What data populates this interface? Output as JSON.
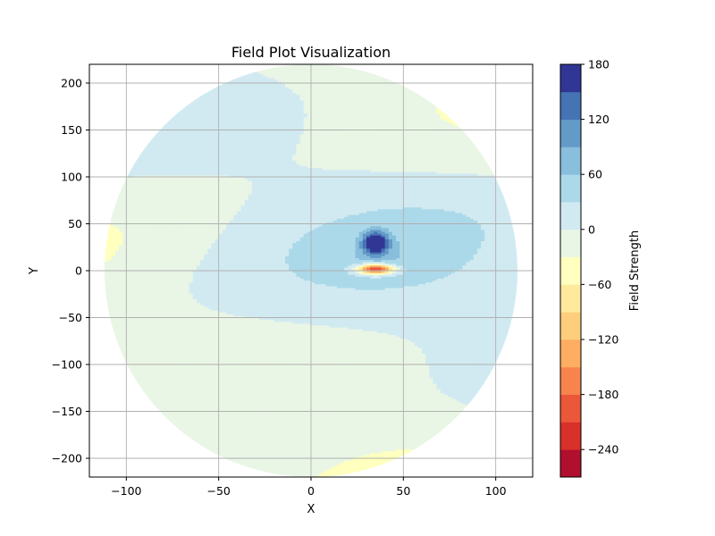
{
  "chart_data": {
    "type": "contour",
    "title": "Field Plot Visualization",
    "xlabel": "X",
    "ylabel": "Y",
    "xlim": [
      -120,
      120
    ],
    "ylim": [
      -220,
      220
    ],
    "xticks": [
      "−100",
      "−50",
      "0",
      "50",
      "100"
    ],
    "xtick_values": [
      -100,
      -50,
      0,
      50,
      100
    ],
    "yticks": [
      "−200",
      "−150",
      "−100",
      "−50",
      "0",
      "50",
      "100",
      "150",
      "200"
    ],
    "ytick_values": [
      -200,
      -150,
      -100,
      -50,
      0,
      50,
      100,
      150,
      200
    ],
    "grid": true,
    "domain_shape": "disc",
    "domain_radius": 220,
    "field_features": {
      "positive_peak": {
        "x": 35,
        "y": 30,
        "value": 180
      },
      "negative_peak": {
        "x": 35,
        "y": 2,
        "value": -270
      },
      "background_range": [
        -30,
        30
      ]
    },
    "colorbar": {
      "label": "Field Strength",
      "range": [
        -270,
        180
      ],
      "levels": [
        -270,
        -240,
        -210,
        -180,
        -150,
        -120,
        -90,
        -60,
        -30,
        0,
        30,
        60,
        90,
        120,
        150,
        180
      ],
      "tick_labels": [
        "180",
        "120",
        "60",
        "0",
        "−60",
        "−120",
        "−180",
        "−240"
      ],
      "tick_values": [
        180,
        120,
        60,
        0,
        -60,
        -120,
        -180,
        -240
      ],
      "colors": [
        "#b10f2e",
        "#d8302a",
        "#ea5739",
        "#f7834d",
        "#fdae61",
        "#fece7c",
        "#fee99d",
        "#ffffbf",
        "#e9f6e5",
        "#d1eaf2",
        "#abd9e9",
        "#89bedc",
        "#649ac7",
        "#4573b4",
        "#313695"
      ]
    }
  }
}
